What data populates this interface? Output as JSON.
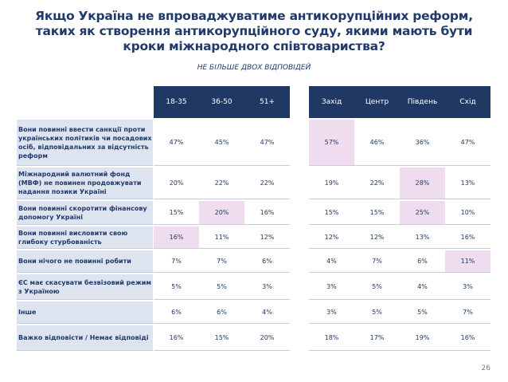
{
  "title_lines": [
    "Якщо Україна не впроваджуватиме антикорупційних реформ,",
    "таких як створення антикорупційного суду, якими мають бути",
    "кроки міжнародного співтовариства?"
  ],
  "subtitle": "НЕ БІЛЬШЕ ДВОХ ВІДПОВІДЕЙ",
  "columns": [
    "18-35",
    "36-50",
    "51+",
    "Захід",
    "Центр",
    "Південь",
    "Схід"
  ],
  "rows": [
    {
      "label": "Вони повинні ввести санкції проти українських політиків чи посадових осіб, відповідальних за відсутність реформ",
      "values": [
        "47%",
        "45%",
        "47%",
        "57%",
        "46%",
        "36%",
        "47%"
      ],
      "highlight": [
        false,
        false,
        false,
        true,
        false,
        false,
        false
      ]
    },
    {
      "label": "Міжнародний валютний фонд (МВФ) не повинен продовжувати надання позики Україні",
      "values": [
        "20%",
        "22%",
        "22%",
        "19%",
        "22%",
        "28%",
        "13%"
      ],
      "highlight": [
        false,
        false,
        false,
        false,
        false,
        true,
        false
      ]
    },
    {
      "label": "Вони повинні скоротити фінансову допомогу Україні",
      "values": [
        "15%",
        "20%",
        "16%",
        "15%",
        "15%",
        "25%",
        "10%"
      ],
      "highlight": [
        false,
        true,
        false,
        false,
        false,
        true,
        false
      ]
    },
    {
      "label": "Вони повинні висловити свою глибоку стурбованість",
      "values": [
        "16%",
        "11%",
        "12%",
        "12%",
        "12%",
        "13%",
        "16%"
      ],
      "highlight": [
        true,
        false,
        false,
        false,
        false,
        false,
        false
      ]
    },
    {
      "label": "Вони нічого не повинні робити",
      "values": [
        "7%",
        "7%",
        "6%",
        "4%",
        "7%",
        "6%",
        "11%"
      ],
      "highlight": [
        false,
        false,
        false,
        false,
        false,
        false,
        true
      ]
    },
    {
      "label": "ЄС має скасувати безвізовий режим з Україною",
      "values": [
        "5%",
        "5%",
        "3%",
        "3%",
        "5%",
        "4%",
        "3%"
      ],
      "highlight": [
        false,
        false,
        false,
        false,
        false,
        false,
        false
      ]
    },
    {
      "label": "Інше",
      "values": [
        "6%",
        "6%",
        "4%",
        "3%",
        "5%",
        "5%",
        "7%"
      ],
      "highlight": [
        false,
        false,
        false,
        false,
        false,
        false,
        false
      ]
    },
    {
      "label": "Важко відповісти / Немає відповіді",
      "values": [
        "16%",
        "15%",
        "20%",
        "18%",
        "17%",
        "19%",
        "16%"
      ],
      "highlight": [
        false,
        false,
        false,
        false,
        false,
        false,
        false
      ]
    }
  ],
  "colors": {
    "header_bg": "#1f3864",
    "label_bg": "#dde4ef",
    "highlight_bg": "#efdcef",
    "text": "#1f3a6b"
  },
  "page_number": "26"
}
